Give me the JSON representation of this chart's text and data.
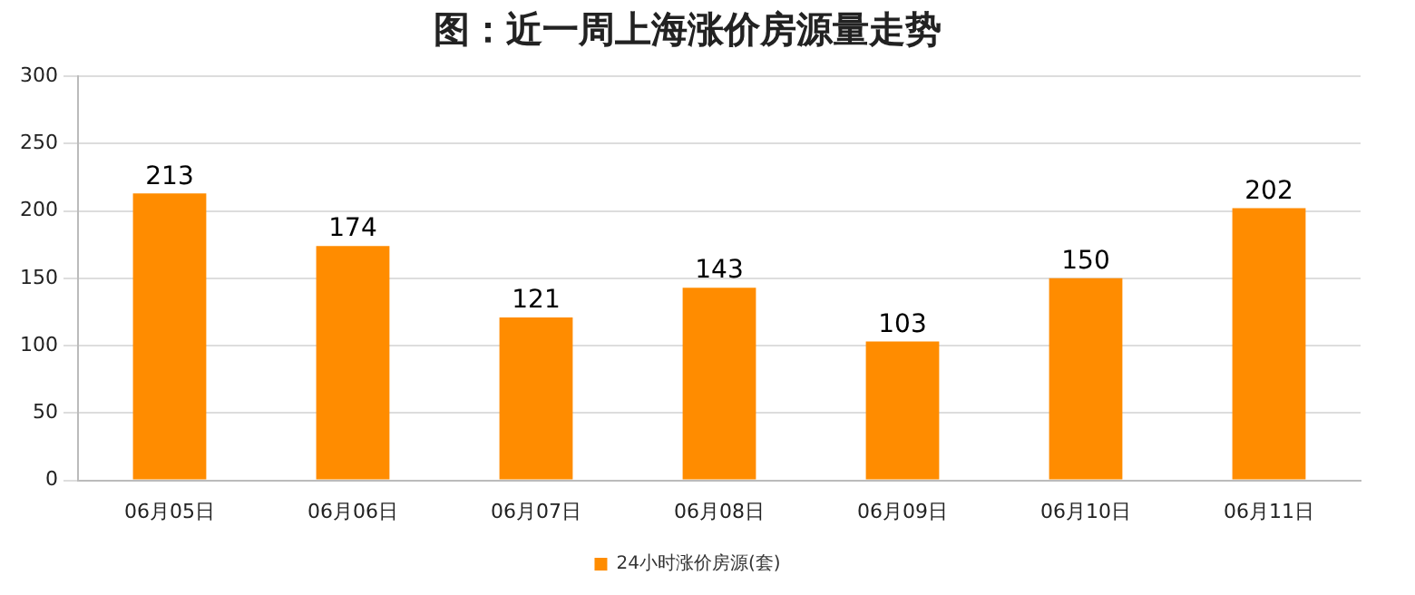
{
  "chart_data": {
    "type": "bar",
    "title": "图：近一周上海涨价房源量走势",
    "categories": [
      "06月05日",
      "06月06日",
      "06月07日",
      "06月08日",
      "06月09日",
      "06月10日",
      "06月11日"
    ],
    "series": [
      {
        "name": "24小时涨价房源(套)",
        "color": "#ff8c00",
        "values": [
          213,
          174,
          121,
          143,
          103,
          150,
          202
        ]
      }
    ],
    "ylim": [
      0,
      300
    ],
    "yticks": [
      0,
      50,
      100,
      150,
      200,
      250,
      300
    ],
    "grid": "y",
    "legend": "bottom",
    "data_labels": true
  }
}
